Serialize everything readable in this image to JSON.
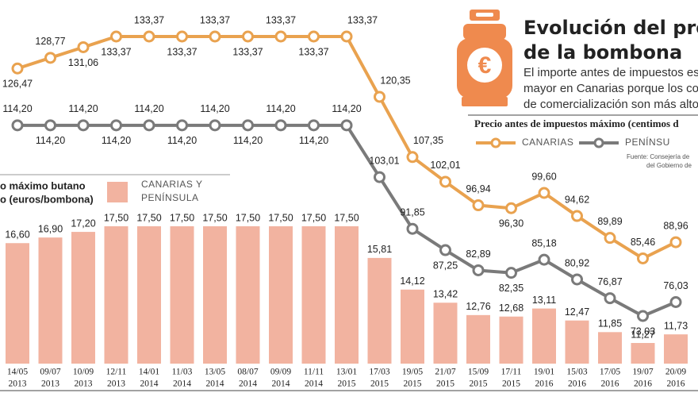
{
  "chart_data": {
    "type": "bar_line",
    "title": [
      "Evolución del precio",
      "de la bombona"
    ],
    "subtitle": [
      "El importe antes de impuestos es",
      "mayor en Canarias porque los co",
      "de comercialización son más alto"
    ],
    "legend_title": "Precio antes de impuestos máximo (centimos d",
    "source": [
      "Fuente: Consejería de",
      "del Gobierno de"
    ],
    "bar_title": [
      "o máximo butano",
      "o (euros/bombona)"
    ],
    "categories": [
      [
        "14/05",
        "2013"
      ],
      [
        "09/07",
        "2013"
      ],
      [
        "10/09",
        "2013"
      ],
      [
        "12/11",
        "2013"
      ],
      [
        "14/01",
        "2014"
      ],
      [
        "11/03",
        "2014"
      ],
      [
        "13/05",
        "2014"
      ],
      [
        "08/07",
        "2014"
      ],
      [
        "09/09",
        "2014"
      ],
      [
        "11/11",
        "2014"
      ],
      [
        "13/01",
        "2015"
      ],
      [
        "17/03",
        "2015"
      ],
      [
        "19/05",
        "2015"
      ],
      [
        "21/07",
        "2015"
      ],
      [
        "15/09",
        "2015"
      ],
      [
        "17/11",
        "2015"
      ],
      [
        "19/01",
        "2016"
      ],
      [
        "15/03",
        "2016"
      ],
      [
        "17/05",
        "2016"
      ],
      [
        "19/07",
        "2016"
      ],
      [
        "20/09",
        "2016"
      ]
    ],
    "bars": {
      "name": "CANARIAS Y PENÍNSULA",
      "color": "#f2b3a0",
      "values": [
        16.6,
        16.9,
        17.2,
        17.5,
        17.5,
        17.5,
        17.5,
        17.5,
        17.5,
        17.5,
        17.5,
        15.81,
        14.12,
        13.42,
        12.76,
        12.68,
        13.11,
        12.47,
        11.85,
        11.27,
        11.73
      ],
      "value_labels": [
        "16,60",
        "16,90",
        "17,20",
        "17,50",
        "17,50",
        "17,50",
        "17,50",
        "17,50",
        "17,50",
        "17,50",
        "17,50",
        "15,81",
        "14,12",
        "13,42",
        "12,76",
        "12,68",
        "13,11",
        "12,47",
        "11,85",
        "11,27",
        "11,73"
      ]
    },
    "series": [
      {
        "name": "CANARIAS",
        "color": "#e9a24f",
        "values": [
          126.47,
          128.77,
          131.06,
          133.37,
          133.37,
          133.37,
          133.37,
          133.37,
          133.37,
          133.37,
          133.37,
          120.35,
          107.35,
          102.01,
          96.94,
          96.3,
          99.6,
          94.62,
          89.89,
          85.46,
          88.96
        ],
        "value_labels": [
          "126,47",
          "128,77",
          "131,06",
          "133,37",
          "133,37",
          "133,37",
          "133,37",
          "133,37",
          "133,37",
          "133,37",
          "133,37",
          "120,35",
          "107,35",
          "102,01",
          "96,94",
          "96,30",
          "99,60",
          "94,62",
          "89,89",
          "85,46",
          "88,96"
        ]
      },
      {
        "name": "PENÍNSU",
        "color": "#7a7a7a",
        "values": [
          114.2,
          114.2,
          114.2,
          114.2,
          114.2,
          114.2,
          114.2,
          114.2,
          114.2,
          114.2,
          114.2,
          103.01,
          91.85,
          87.25,
          82.89,
          82.35,
          85.18,
          80.92,
          76.87,
          73.03,
          76.03
        ],
        "value_labels": [
          "114,20",
          "114,20",
          "114,20",
          "114,20",
          "114,20",
          "114,20",
          "114,20",
          "114,20",
          "114,20",
          "114,20",
          "114,20",
          "103,01",
          "91,85",
          "87,25",
          "82,89",
          "82,35",
          "85,18",
          "80,92",
          "76,87",
          "73,03",
          "76,03"
        ]
      }
    ]
  }
}
